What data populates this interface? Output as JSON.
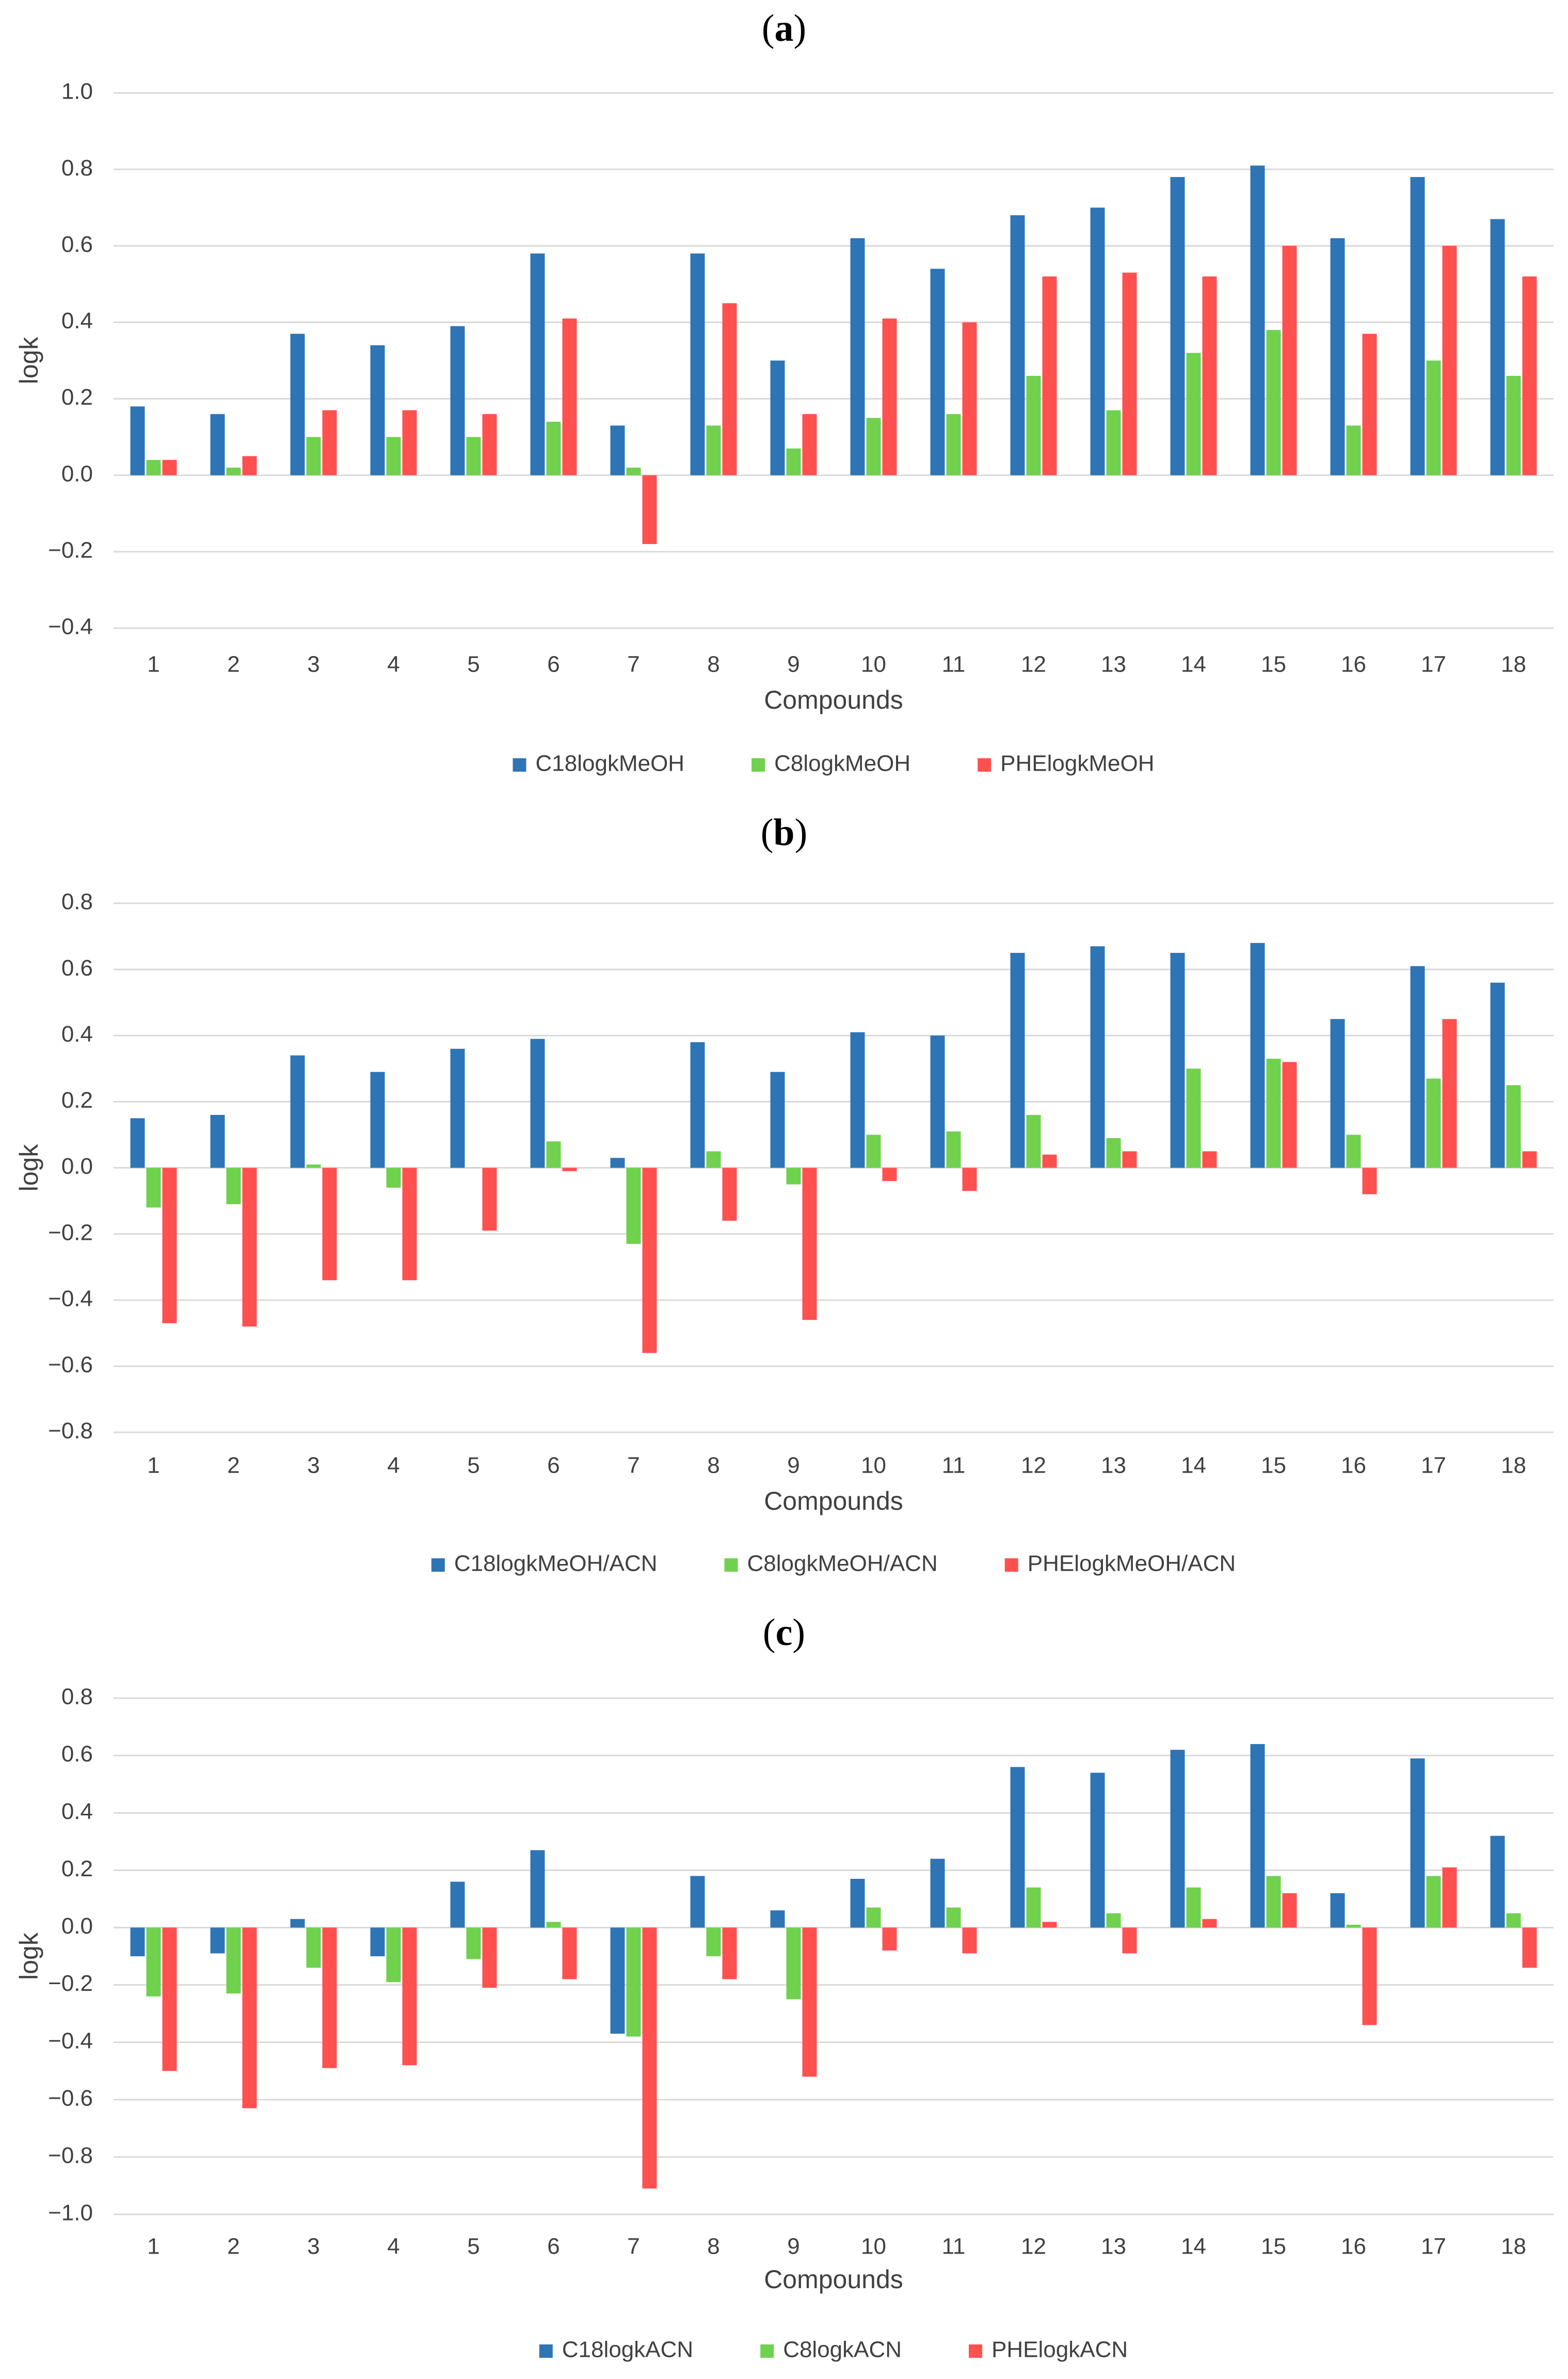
{
  "chart_data": [
    {
      "type": "bar",
      "title": "(a)",
      "title_parts": {
        "open": "(",
        "letter": "a",
        "close": ")"
      },
      "xlabel": "Compounds",
      "ylabel": "logk",
      "ylim": [
        -0.4,
        1.0
      ],
      "yticks": [
        -0.4,
        -0.2,
        0.0,
        0.2,
        0.4,
        0.6,
        0.8,
        1.0
      ],
      "ytick_labels": [
        "−0.4",
        "−0.2",
        "0.0",
        "0.2",
        "0.4",
        "0.6",
        "0.8",
        "1.0"
      ],
      "grid": true,
      "legend": "bottom",
      "categories": [
        "1",
        "2",
        "3",
        "4",
        "5",
        "6",
        "7",
        "8",
        "9",
        "10",
        "11",
        "12",
        "13",
        "14",
        "15",
        "16",
        "17",
        "18"
      ],
      "series": [
        {
          "name": "C18logkMeOH",
          "color": "#2e75b6",
          "values": [
            0.18,
            0.16,
            0.37,
            0.34,
            0.39,
            0.58,
            0.13,
            0.58,
            0.3,
            0.62,
            0.54,
            0.68,
            0.7,
            0.78,
            0.81,
            0.62,
            0.78,
            0.67
          ]
        },
        {
          "name": "C8logkMeOH",
          "color": "#70d14f",
          "values": [
            0.04,
            0.02,
            0.1,
            0.1,
            0.1,
            0.14,
            0.02,
            0.13,
            0.07,
            0.15,
            0.16,
            0.26,
            0.17,
            0.32,
            0.38,
            0.13,
            0.3,
            0.26
          ]
        },
        {
          "name": "PHElogkMeOH",
          "color": "#ff5050",
          "values": [
            0.04,
            0.05,
            0.17,
            0.17,
            0.16,
            0.41,
            -0.18,
            0.45,
            0.16,
            0.41,
            0.4,
            0.52,
            0.53,
            0.52,
            0.6,
            0.37,
            0.6,
            0.52
          ]
        }
      ]
    },
    {
      "type": "bar",
      "title": "(b)",
      "title_parts": {
        "open": "(",
        "letter": "b",
        "close": ")"
      },
      "xlabel": "Compounds",
      "ylabel": "logk",
      "ylim": [
        -0.8,
        0.8
      ],
      "yticks": [
        -0.8,
        -0.6,
        -0.4,
        -0.2,
        0.0,
        0.2,
        0.4,
        0.6,
        0.8
      ],
      "ytick_labels": [
        "−0.8",
        "−0.6",
        "−0.4",
        "−0.2",
        "0.0",
        "0.2",
        "0.4",
        "0.6",
        "0.8"
      ],
      "grid": true,
      "legend": "bottom",
      "categories": [
        "1",
        "2",
        "3",
        "4",
        "5",
        "6",
        "7",
        "8",
        "9",
        "10",
        "11",
        "12",
        "13",
        "14",
        "15",
        "16",
        "17",
        "18"
      ],
      "series": [
        {
          "name": "C18logkMeOH/ACN",
          "color": "#2e75b6",
          "values": [
            0.15,
            0.16,
            0.34,
            0.29,
            0.36,
            0.39,
            0.03,
            0.38,
            0.29,
            0.41,
            0.4,
            0.65,
            0.67,
            0.65,
            0.68,
            0.45,
            0.61,
            0.56
          ]
        },
        {
          "name": "C8logkMeOH/ACN",
          "color": "#70d14f",
          "values": [
            -0.12,
            -0.11,
            0.01,
            -0.06,
            0.0,
            0.08,
            -0.23,
            0.05,
            -0.05,
            0.1,
            0.11,
            0.16,
            0.09,
            0.3,
            0.33,
            0.1,
            0.27,
            0.25
          ]
        },
        {
          "name": "PHElogkMeOH/ACN",
          "color": "#ff5050",
          "values": [
            -0.47,
            -0.48,
            -0.34,
            -0.34,
            -0.19,
            -0.01,
            -0.56,
            -0.16,
            -0.46,
            -0.04,
            -0.07,
            0.04,
            0.05,
            0.05,
            0.32,
            -0.08,
            0.45,
            0.05
          ]
        }
      ]
    },
    {
      "type": "bar",
      "title": "(c)",
      "title_parts": {
        "open": "(",
        "letter": "c",
        "close": ")"
      },
      "xlabel": "Compounds",
      "ylabel": "logk",
      "ylim": [
        -1.0,
        0.8
      ],
      "yticks": [
        -1.0,
        -0.8,
        -0.6,
        -0.4,
        -0.2,
        0.0,
        0.2,
        0.4,
        0.6,
        0.8
      ],
      "ytick_labels": [
        "−1.0",
        "−0.8",
        "−0.6",
        "−0.4",
        "−0.2",
        "0.0",
        "0.2",
        "0.4",
        "0.6",
        "0.8"
      ],
      "grid": true,
      "legend": "bottom",
      "categories": [
        "1",
        "2",
        "3",
        "4",
        "5",
        "6",
        "7",
        "8",
        "9",
        "10",
        "11",
        "12",
        "13",
        "14",
        "15",
        "16",
        "17",
        "18"
      ],
      "series": [
        {
          "name": "C18logkACN",
          "color": "#2e75b6",
          "values": [
            -0.1,
            -0.09,
            0.03,
            -0.1,
            0.16,
            0.27,
            -0.37,
            0.18,
            0.06,
            0.17,
            0.24,
            0.56,
            0.54,
            0.62,
            0.64,
            0.12,
            0.59,
            0.32
          ]
        },
        {
          "name": "C8logkACN",
          "color": "#70d14f",
          "values": [
            -0.24,
            -0.23,
            -0.14,
            -0.19,
            -0.11,
            0.02,
            -0.38,
            -0.1,
            -0.25,
            0.07,
            0.07,
            0.14,
            0.05,
            0.14,
            0.18,
            0.01,
            0.18,
            0.05
          ]
        },
        {
          "name": "PHElogkACN",
          "color": "#ff5050",
          "values": [
            -0.5,
            -0.63,
            -0.49,
            -0.48,
            -0.21,
            -0.18,
            -0.91,
            -0.18,
            -0.52,
            -0.08,
            -0.09,
            0.02,
            -0.09,
            0.03,
            0.12,
            -0.34,
            0.21,
            -0.14
          ]
        }
      ]
    }
  ]
}
